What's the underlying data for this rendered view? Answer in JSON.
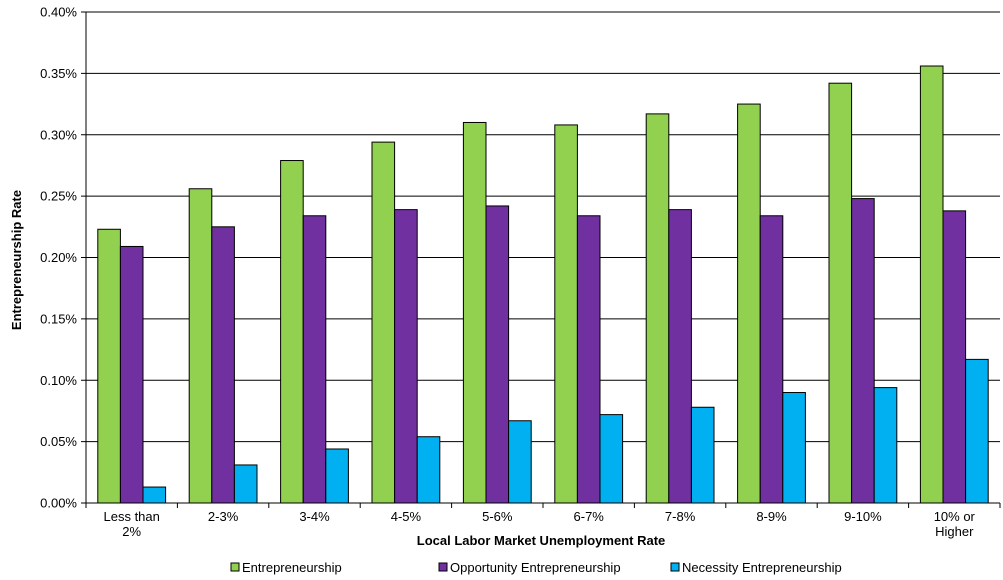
{
  "chart_data": {
    "type": "bar",
    "xlabel": "Local Labor Market Unemployment Rate",
    "ylabel": "Entrepreneurship Rate",
    "ylim": [
      0,
      0.4
    ],
    "y_tick_labels": [
      "0.00%",
      "0.05%",
      "0.10%",
      "0.15%",
      "0.20%",
      "0.25%",
      "0.30%",
      "0.35%",
      "0.40%"
    ],
    "categories": [
      [
        "Less than",
        "2%"
      ],
      [
        "2-3%"
      ],
      [
        "3-4%"
      ],
      [
        "4-5%"
      ],
      [
        "5-6%"
      ],
      [
        "6-7%"
      ],
      [
        "7-8%"
      ],
      [
        "8-9%"
      ],
      [
        "9-10%"
      ],
      [
        "10% or",
        "Higher"
      ]
    ],
    "series": [
      {
        "name": "Entrepreneurship",
        "color": "#92D050",
        "values": [
          0.223,
          0.256,
          0.279,
          0.294,
          0.31,
          0.308,
          0.317,
          0.325,
          0.342,
          0.356
        ]
      },
      {
        "name": "Opportunity Entrepreneurship",
        "color": "#7030A0",
        "values": [
          0.209,
          0.225,
          0.234,
          0.239,
          0.242,
          0.234,
          0.239,
          0.234,
          0.248,
          0.238
        ]
      },
      {
        "name": "Necessity Entrepreneurship",
        "color": "#00B0F0",
        "values": [
          0.013,
          0.031,
          0.044,
          0.054,
          0.067,
          0.072,
          0.078,
          0.09,
          0.094,
          0.117
        ]
      }
    ],
    "grid": true,
    "legend_position": "bottom"
  }
}
